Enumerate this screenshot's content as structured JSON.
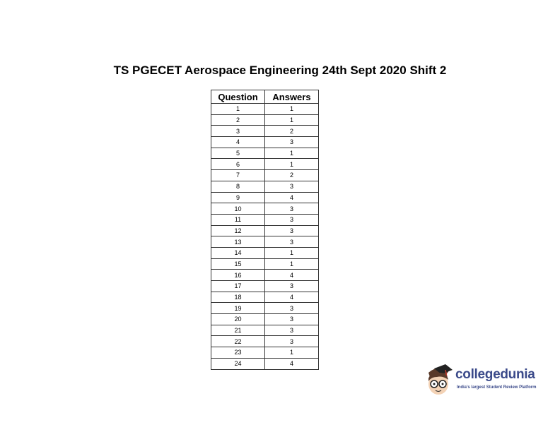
{
  "title": "TS PGECET Aerospace Engineering 24th Sept 2020 Shift 2",
  "table": {
    "headers": [
      "Question",
      "Answers"
    ],
    "rows": [
      [
        "1",
        "1"
      ],
      [
        "2",
        "1"
      ],
      [
        "3",
        "2"
      ],
      [
        "4",
        "3"
      ],
      [
        "5",
        "1"
      ],
      [
        "6",
        "1"
      ],
      [
        "7",
        "2"
      ],
      [
        "8",
        "3"
      ],
      [
        "9",
        "4"
      ],
      [
        "10",
        "3"
      ],
      [
        "11",
        "3"
      ],
      [
        "12",
        "3"
      ],
      [
        "13",
        "3"
      ],
      [
        "14",
        "1"
      ],
      [
        "15",
        "1"
      ],
      [
        "16",
        "4"
      ],
      [
        "17",
        "3"
      ],
      [
        "18",
        "4"
      ],
      [
        "19",
        "3"
      ],
      [
        "20",
        "3"
      ],
      [
        "21",
        "3"
      ],
      [
        "22",
        "3"
      ],
      [
        "23",
        "1"
      ],
      [
        "24",
        "4"
      ]
    ]
  },
  "logo": {
    "name": "collegedunia",
    "tagline": "India's largest Student Review Platform",
    "brand_color": "#3b4a8a"
  }
}
